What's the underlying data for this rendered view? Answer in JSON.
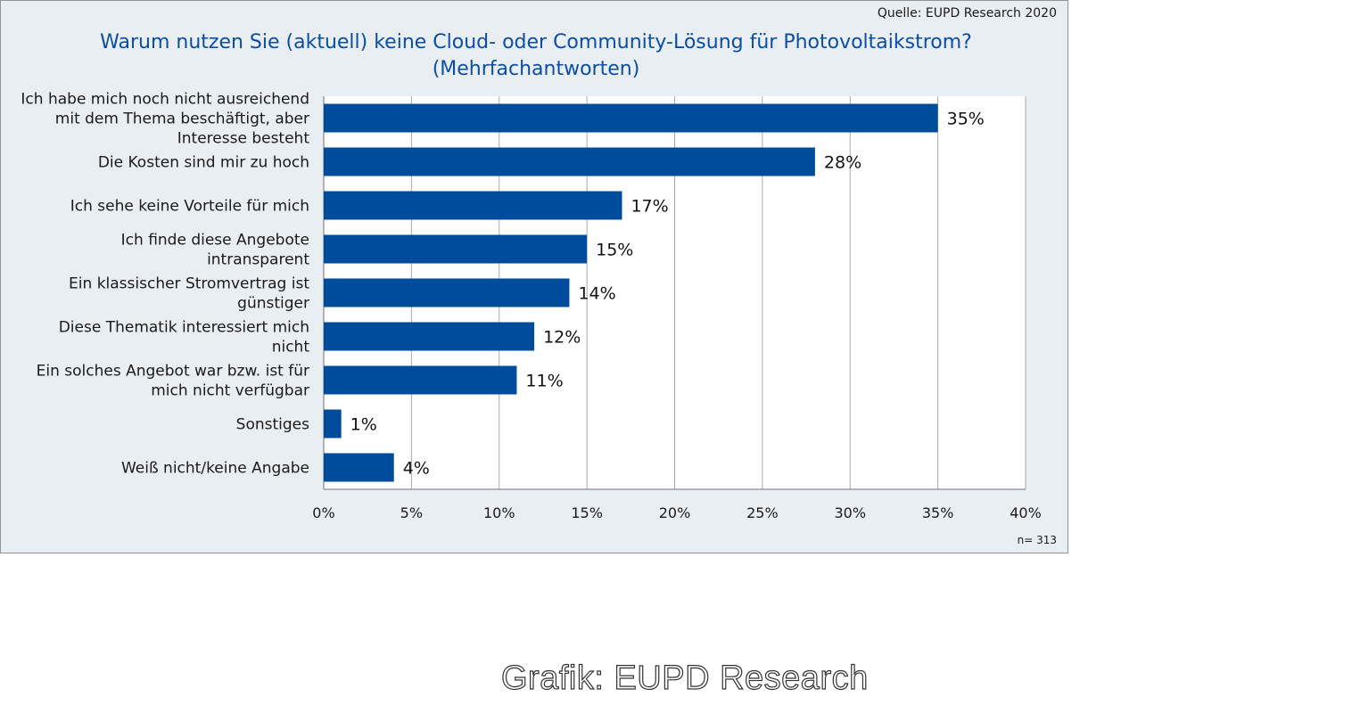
{
  "source": "Quelle:  EUPD Research 2020",
  "sample": "n= 313",
  "credit": "Grafik: EUPD Research",
  "colors": {
    "bar": "#004c9c",
    "title": "#0b4ea2",
    "grid": "#a6abaf",
    "panel": "#e9eef2"
  },
  "chart_data": {
    "type": "bar",
    "orientation": "horizontal",
    "title": "Warum nutzen Sie (aktuell) keine Cloud- oder Community-Lösung für Photovoltaikstrom?",
    "subtitle": "(Mehrfachantworten)",
    "categories": [
      [
        "Ich habe mich noch nicht ausreichend",
        "mit dem Thema beschäftigt, aber",
        "Interesse besteht"
      ],
      [
        "Die Kosten sind mir zu hoch"
      ],
      [
        "Ich sehe keine Vorteile für mich"
      ],
      [
        "Ich finde diese Angebote",
        "intransparent"
      ],
      [
        "Ein klassischer Stromvertrag ist",
        "günstiger"
      ],
      [
        "Diese Thematik interessiert mich",
        "nicht"
      ],
      [
        "Ein solches Angebot war bzw. ist für",
        "mich nicht verfügbar"
      ],
      [
        "Sonstiges"
      ],
      [
        "Weiß nicht/keine Angabe"
      ]
    ],
    "values": [
      35,
      28,
      17,
      15,
      14,
      12,
      11,
      1,
      4
    ],
    "value_labels": [
      "35%",
      "28%",
      "17%",
      "15%",
      "14%",
      "12%",
      "11%",
      "1%",
      "4%"
    ],
    "xlim": [
      0,
      40
    ],
    "x_ticks": [
      0,
      5,
      10,
      15,
      20,
      25,
      30,
      35,
      40
    ],
    "x_tick_labels": [
      "0%",
      "5%",
      "10%",
      "15%",
      "20%",
      "25%",
      "30%",
      "35%",
      "40%"
    ],
    "grid": true
  }
}
